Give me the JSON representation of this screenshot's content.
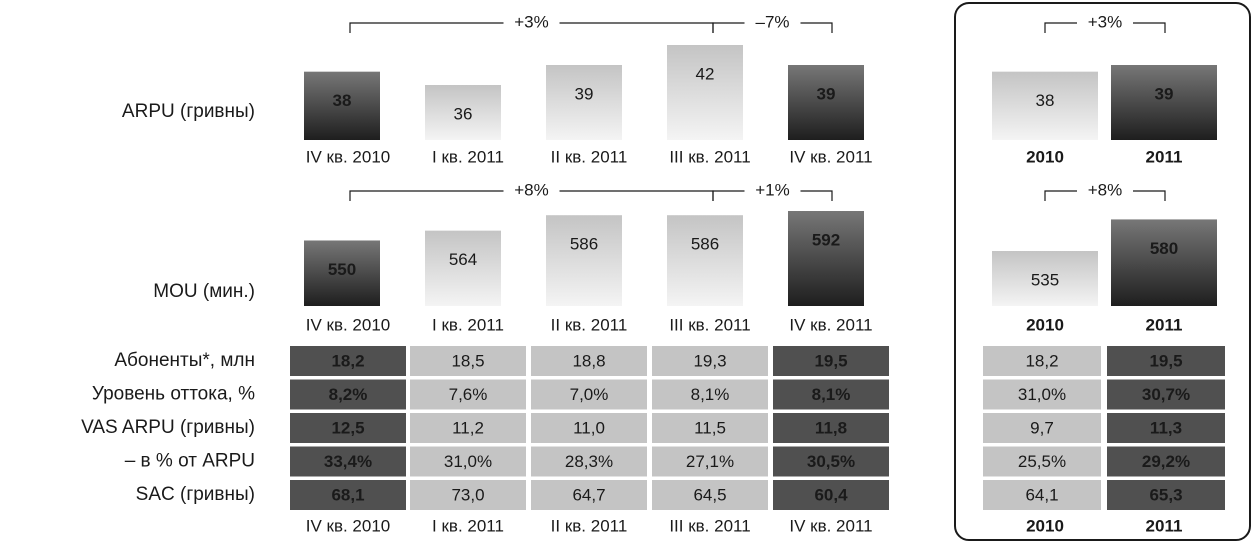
{
  "quarters": [
    {
      "label": "IV кв. 2010",
      "color": "#505050"
    },
    {
      "label": "I кв. 2011",
      "color": "#c4c4c4"
    },
    {
      "label": "II кв. 2011",
      "color": "#c4c4c4"
    },
    {
      "label": "III кв. 2011",
      "color": "#c4c4c4"
    },
    {
      "label": "IV кв. 2011",
      "color": "#505050"
    }
  ],
  "years": [
    {
      "label": "2010",
      "color": "#c4c4c4"
    },
    {
      "label": "2011",
      "color": "#505050"
    }
  ],
  "arpu": {
    "label": "ARPU (гривны)",
    "quarterly": [
      38,
      36,
      39,
      42,
      39
    ],
    "annual": [
      38,
      39
    ],
    "changes": [
      {
        "text": "+3%",
        "color": "#e3232a"
      },
      {
        "text": "–7%",
        "color": "#1a1a1a"
      }
    ],
    "annual_change": {
      "text": "+3%",
      "color": "#e3232a"
    }
  },
  "mou": {
    "label": "MOU (мин.)",
    "quarterly": [
      550,
      564,
      586,
      586,
      592
    ],
    "annual": [
      535,
      580
    ],
    "changes": [
      {
        "text": "+8%",
        "color": "#e3232a"
      },
      {
        "text": "+1%",
        "color": "#e3232a"
      }
    ],
    "annual_change": {
      "text": "+8%",
      "color": "#e3232a"
    }
  },
  "table": {
    "rows": [
      {
        "label": "Абоненты*, млн",
        "quarterly": [
          "18,2",
          "18,5",
          "18,8",
          "19,3",
          "19,5"
        ],
        "annual": [
          "18,2",
          "19,5"
        ]
      },
      {
        "label": "Уровень оттока, %",
        "quarterly": [
          "8,2%",
          "7,6%",
          "7,0%",
          "8,1%",
          "8,1%"
        ],
        "annual": [
          "31,0%",
          "30,7%"
        ]
      },
      {
        "label": "VAS ARPU (гривны)",
        "quarterly": [
          "12,5",
          "11,2",
          "11,0",
          "11,5",
          "11,8"
        ],
        "annual": [
          "9,7",
          "11,3"
        ]
      },
      {
        "label": "– в % от ARPU",
        "quarterly": [
          "33,4%",
          "31,0%",
          "28,3%",
          "27,1%",
          "30,5%"
        ],
        "annual": [
          "25,5%",
          "29,2%"
        ]
      },
      {
        "label": "SAC (гривны)",
        "quarterly": [
          "68,1",
          "73,0",
          "64,7",
          "64,5",
          "60,4"
        ],
        "annual": [
          "64,1",
          "65,3"
        ]
      }
    ]
  }
}
